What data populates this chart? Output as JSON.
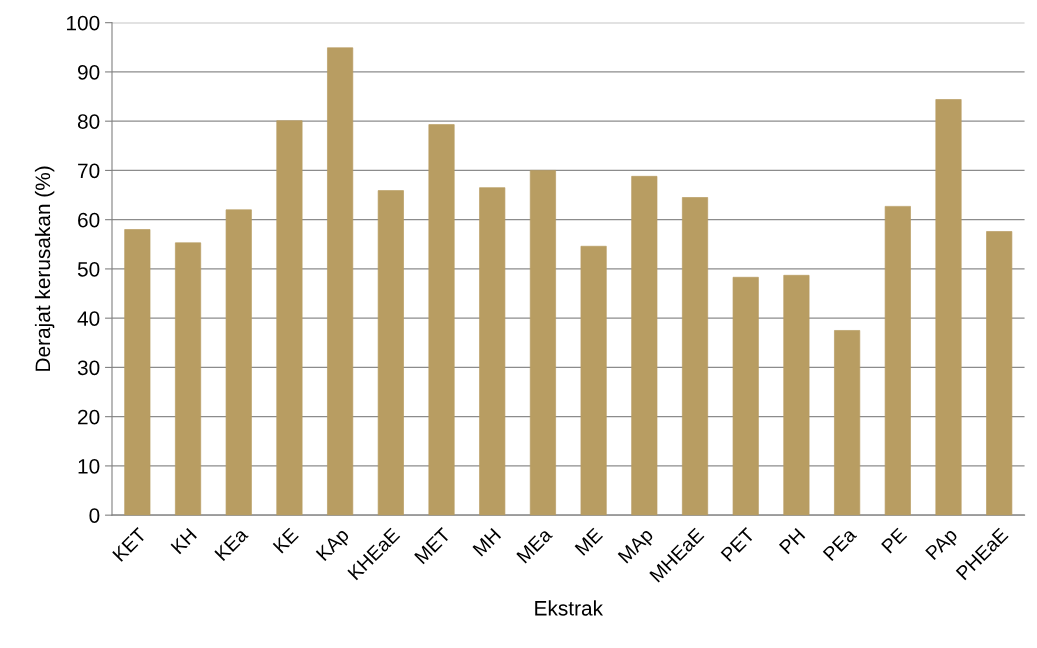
{
  "chart_data": {
    "type": "bar",
    "xlabel": "Ekstrak",
    "ylabel": "Derajat kerusakan (%)",
    "categories": [
      "KET",
      "KH",
      "KEa",
      "KE",
      "KAp",
      "KHEaE",
      "MET",
      "MH",
      "MEa",
      "ME",
      "MAp",
      "MHEaE",
      "PET",
      "PH",
      "PEa",
      "PE",
      "PAp",
      "PHEaE"
    ],
    "values": [
      58.0,
      55.3,
      62.0,
      80.1,
      94.9,
      65.9,
      79.3,
      66.5,
      70.0,
      54.6,
      68.8,
      64.5,
      48.3,
      48.7,
      37.5,
      62.7,
      84.4,
      57.6
    ],
    "color": "#b89d62",
    "ylim": [
      0,
      100
    ],
    "yticks": [
      0,
      10,
      20,
      30,
      40,
      50,
      60,
      70,
      80,
      90,
      100
    ],
    "grid": "y",
    "legend": false
  }
}
